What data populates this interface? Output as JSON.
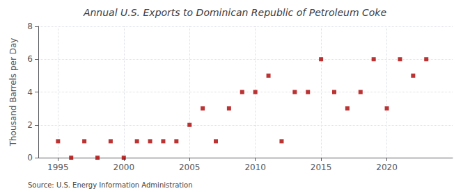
{
  "chart_data": {
    "type": "scatter",
    "title": "Annual U.S. Exports to Dominican Republic of Petroleum Coke",
    "ylabel": "Thousand Barrels per Day",
    "annotations": [
      "Source: U.S. Energy Information Administration"
    ],
    "x": [
      1995,
      1996,
      1997,
      1998,
      1999,
      2000,
      2001,
      2002,
      2003,
      2004,
      2005,
      2006,
      2007,
      2008,
      2009,
      2010,
      2011,
      2012,
      2013,
      2014,
      2015,
      2016,
      2017,
      2018,
      2019,
      2020,
      2021,
      2022,
      2023
    ],
    "values": [
      1,
      0,
      1,
      0,
      1,
      0,
      1,
      1,
      1,
      1,
      2,
      3,
      1,
      3,
      4,
      4,
      5,
      1,
      4,
      4,
      6,
      4,
      3,
      4,
      6,
      3,
      6,
      5,
      6
    ],
    "color": "#aa0000",
    "marker": "square",
    "xlim": [
      1993.5,
      2025
    ],
    "xticks": [
      1995,
      2000,
      2005,
      2010,
      2015,
      2020
    ],
    "ylim": [
      0,
      8
    ],
    "yticks": [
      0,
      2,
      4,
      6,
      8
    ],
    "grid": true
  }
}
